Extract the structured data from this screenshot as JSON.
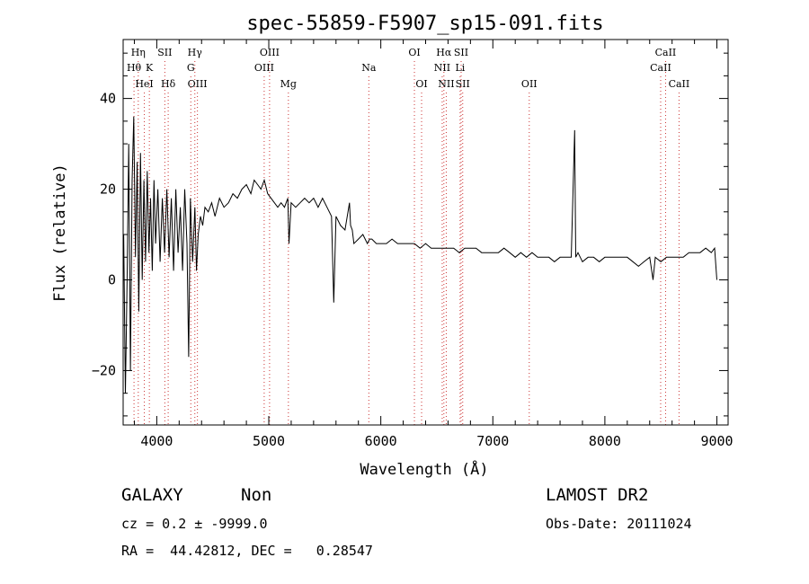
{
  "chart_data": {
    "type": "line",
    "title": "spec-55859-F5907_sp15-091.fits",
    "xlabel": "Wavelength (Å)",
    "ylabel": "Flux (relative)",
    "xlim": [
      3700,
      9100
    ],
    "ylim": [
      -32,
      53
    ],
    "xticks": [
      4000,
      5000,
      6000,
      7000,
      8000,
      9000
    ],
    "yticks": [
      -20,
      0,
      20,
      40
    ],
    "grid": false,
    "line_color": "#000000",
    "marker_color": "#cc3333",
    "series": [
      {
        "x": [
          3705,
          3720,
          3735,
          3750,
          3765,
          3780,
          3795,
          3810,
          3825,
          3840,
          3855,
          3870,
          3885,
          3900,
          3915,
          3930,
          3945,
          3960,
          3975,
          3990,
          4010,
          4030,
          4050,
          4070,
          4090,
          4110,
          4130,
          4150,
          4170,
          4190,
          4210,
          4230,
          4250,
          4270,
          4285,
          4300,
          4320,
          4340,
          4355,
          4370,
          4390,
          4410,
          4430,
          4460,
          4490,
          4520,
          4560,
          4600,
          4640,
          4680,
          4720,
          4760,
          4800,
          4840,
          4870,
          4900,
          4930,
          4960,
          4990,
          5020,
          5050,
          5080,
          5110,
          5140,
          5170,
          5180,
          5200,
          5240,
          5280,
          5320,
          5360,
          5400,
          5440,
          5480,
          5520,
          5560,
          5580,
          5600,
          5640,
          5680,
          5720,
          5730,
          5745,
          5760,
          5800,
          5840,
          5880,
          5900,
          5920,
          5960,
          6000,
          6050,
          6100,
          6150,
          6200,
          6250,
          6300,
          6350,
          6400,
          6450,
          6500,
          6550,
          6600,
          6650,
          6700,
          6750,
          6800,
          6850,
          6900,
          6950,
          7000,
          7050,
          7100,
          7150,
          7200,
          7250,
          7300,
          7350,
          7400,
          7450,
          7500,
          7550,
          7600,
          7650,
          7700,
          7730,
          7740,
          7760,
          7780,
          7800,
          7850,
          7900,
          7950,
          8000,
          8050,
          8100,
          8150,
          8200,
          8250,
          8300,
          8350,
          8400,
          8430,
          8450,
          8500,
          8550,
          8600,
          8650,
          8700,
          8750,
          8800,
          8850,
          8900,
          8950,
          8980,
          9000
        ],
        "values": [
          10,
          -25,
          0,
          30,
          -20,
          22,
          36,
          5,
          26,
          -7,
          28,
          0,
          22,
          4,
          24,
          6,
          18,
          2,
          22,
          8,
          20,
          4,
          18,
          6,
          20,
          5,
          18,
          2,
          20,
          6,
          16,
          2,
          20,
          8,
          -17,
          18,
          4,
          16,
          2,
          10,
          14,
          12,
          16,
          15,
          17,
          14,
          18,
          16,
          17,
          19,
          18,
          20,
          21,
          19,
          22,
          21,
          20,
          22,
          19,
          18,
          17,
          16,
          17,
          16,
          18,
          8,
          17,
          16,
          17,
          18,
          17,
          18,
          16,
          18,
          16,
          14,
          -5,
          14,
          12,
          11,
          17,
          12,
          11,
          8,
          9,
          10,
          8,
          9,
          9,
          8,
          8,
          8,
          9,
          8,
          8,
          8,
          8,
          7,
          8,
          7,
          7,
          7,
          7,
          7,
          6,
          7,
          7,
          7,
          6,
          6,
          6,
          6,
          7,
          6,
          5,
          6,
          5,
          6,
          5,
          5,
          5,
          4,
          5,
          5,
          5,
          33,
          5,
          6,
          5,
          4,
          5,
          5,
          4,
          5,
          5,
          5,
          5,
          5,
          4,
          3,
          4,
          5,
          0,
          5,
          4,
          5,
          5,
          5,
          5,
          6,
          6,
          6,
          7,
          6,
          7,
          0
        ]
      }
    ],
    "line_markers": [
      {
        "name": "Hη",
        "x": 3835,
        "row": 1
      },
      {
        "name": "Hθ",
        "x": 3797,
        "row": 2
      },
      {
        "name": "HeI",
        "x": 3889,
        "row": 3
      },
      {
        "name": "K",
        "x": 3934,
        "row": 2
      },
      {
        "name": "SII",
        "x": 4072,
        "row": 1
      },
      {
        "name": "Hδ",
        "x": 4102,
        "row": 3
      },
      {
        "name": "Hγ",
        "x": 4340,
        "row": 1
      },
      {
        "name": "G",
        "x": 4304,
        "row": 2
      },
      {
        "name": "OIII",
        "x": 4363,
        "row": 3
      },
      {
        "name": "OIII",
        "x": 5007,
        "row": 1
      },
      {
        "name": "OIII",
        "x": 4959,
        "row": 2
      },
      {
        "name": "Mg",
        "x": 5175,
        "row": 3
      },
      {
        "name": "Na",
        "x": 5893,
        "row": 2
      },
      {
        "name": "OI",
        "x": 6300,
        "row": 1
      },
      {
        "name": "OI",
        "x": 6364,
        "row": 3
      },
      {
        "name": "Hα",
        "x": 6563,
        "row": 1
      },
      {
        "name": "SII",
        "x": 6717,
        "row": 1
      },
      {
        "name": "NII",
        "x": 6548,
        "row": 2
      },
      {
        "name": "Li",
        "x": 6708,
        "row": 2
      },
      {
        "name": "NII",
        "x": 6584,
        "row": 3
      },
      {
        "name": "SII",
        "x": 6731,
        "row": 3
      },
      {
        "name": "OII",
        "x": 7325,
        "row": 3
      },
      {
        "name": "CaII",
        "x": 8542,
        "row": 1
      },
      {
        "name": "CaII",
        "x": 8498,
        "row": 2
      },
      {
        "name": "CaII",
        "x": 8662,
        "row": 3
      }
    ]
  },
  "info": {
    "class": "GALAXY",
    "subclass": "Non",
    "survey": "LAMOST DR2",
    "cz": "cz = 0.2 ± -9999.0",
    "obs_date": "Obs-Date: 20111024",
    "coords": "RA =  44.42812, DEC =   0.28547"
  }
}
